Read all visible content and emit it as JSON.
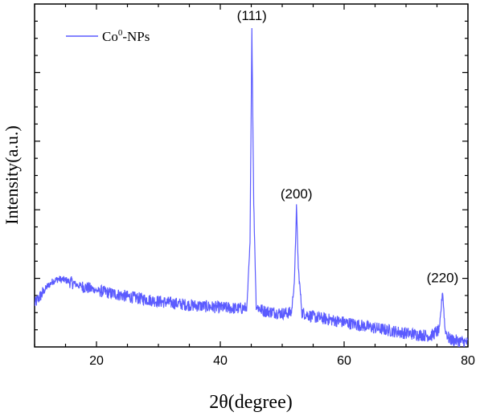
{
  "chart_data": {
    "type": "line",
    "xlabel": "2θ(degree)",
    "ylabel": "Intensity(a.u.)",
    "xlim": [
      10,
      80
    ],
    "x_ticks": [
      20,
      40,
      60,
      80
    ],
    "x_tick_labels": [
      "20",
      "40",
      "60",
      "80"
    ],
    "y_ticks_labeled": false,
    "y_units": "relative intensity (0 = axis bottom, 1 = axis top)",
    "ylim": [
      0,
      1
    ],
    "legend": {
      "position": "top-left"
    },
    "series": [
      {
        "name": "Co⁰-NPs",
        "color": "#5b5bff",
        "x": [
          10,
          11,
          12,
          13,
          13.8,
          15,
          17,
          20,
          25,
          30,
          35,
          40,
          43,
          44.3,
          44.8,
          45.1,
          45.4,
          45.8,
          47,
          50,
          51.5,
          52.0,
          52.3,
          52.6,
          53.2,
          55,
          60,
          65,
          70,
          74,
          75.4,
          75.9,
          76.3,
          77,
          80
        ],
        "y": [
          0.125,
          0.15,
          0.175,
          0.192,
          0.198,
          0.195,
          0.18,
          0.165,
          0.147,
          0.133,
          0.122,
          0.115,
          0.112,
          0.114,
          0.3,
          0.93,
          0.42,
          0.118,
          0.105,
          0.098,
          0.1,
          0.2,
          0.41,
          0.23,
          0.1,
          0.088,
          0.072,
          0.055,
          0.04,
          0.032,
          0.05,
          0.165,
          0.05,
          0.022,
          0.012
        ],
        "noise_amplitude": 0.018
      }
    ],
    "annotations": [
      {
        "text": "(111)",
        "x": 45.1,
        "y": 0.93
      },
      {
        "text": "(200)",
        "x": 52.3,
        "y": 0.41
      },
      {
        "text": "(220)",
        "x": 75.9,
        "y": 0.165
      }
    ]
  },
  "legend_label_main": "Co",
  "legend_label_sup": "0",
  "legend_label_rest": "-NPs"
}
